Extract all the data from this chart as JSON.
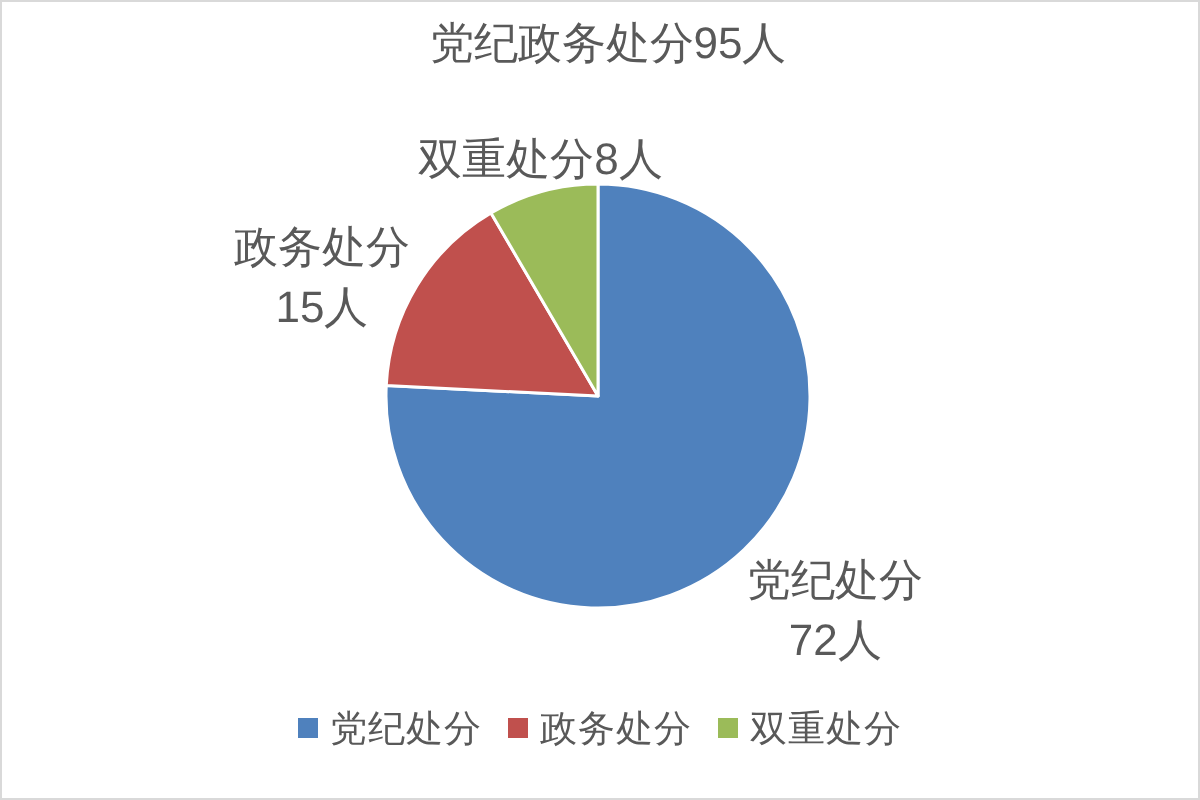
{
  "chart_data": {
    "type": "pie",
    "title": "党纪政务处分95人",
    "categories": [
      "党纪处分",
      "政务处分",
      "双重处分"
    ],
    "values": [
      72,
      15,
      8
    ],
    "colors": [
      "#4f81bd",
      "#c0504d",
      "#9bbb59"
    ],
    "value_labels": [
      "72人",
      "15人",
      "8人"
    ],
    "legend": "bottom"
  }
}
